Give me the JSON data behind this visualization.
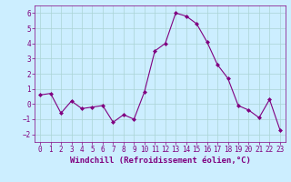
{
  "x": [
    0,
    1,
    2,
    3,
    4,
    5,
    6,
    7,
    8,
    9,
    10,
    11,
    12,
    13,
    14,
    15,
    16,
    17,
    18,
    19,
    20,
    21,
    22,
    23
  ],
  "y": [
    0.6,
    0.7,
    -0.6,
    0.2,
    -0.3,
    -0.2,
    -0.1,
    -1.2,
    -0.7,
    -1.0,
    0.8,
    3.5,
    4.0,
    6.0,
    5.8,
    5.3,
    4.1,
    2.6,
    1.7,
    -0.1,
    -0.4,
    -0.9,
    0.3,
    -1.7
  ],
  "line_color": "#800080",
  "marker": "D",
  "markersize": 2.0,
  "linewidth": 0.8,
  "xlabel": "Windchill (Refroidissement éolien,°C)",
  "xlabel_fontsize": 6.5,
  "bg_color": "#cceeff",
  "grid_color": "#aad4d4",
  "ylim": [
    -2.5,
    6.5
  ],
  "xlim": [
    -0.5,
    23.5
  ],
  "yticks": [
    -2,
    -1,
    0,
    1,
    2,
    3,
    4,
    5,
    6
  ],
  "xticks": [
    0,
    1,
    2,
    3,
    4,
    5,
    6,
    7,
    8,
    9,
    10,
    11,
    12,
    13,
    14,
    15,
    16,
    17,
    18,
    19,
    20,
    21,
    22,
    23
  ],
  "tick_fontsize": 5.5,
  "tick_color": "#800080",
  "label_color": "#800080",
  "spine_color": "#800080"
}
